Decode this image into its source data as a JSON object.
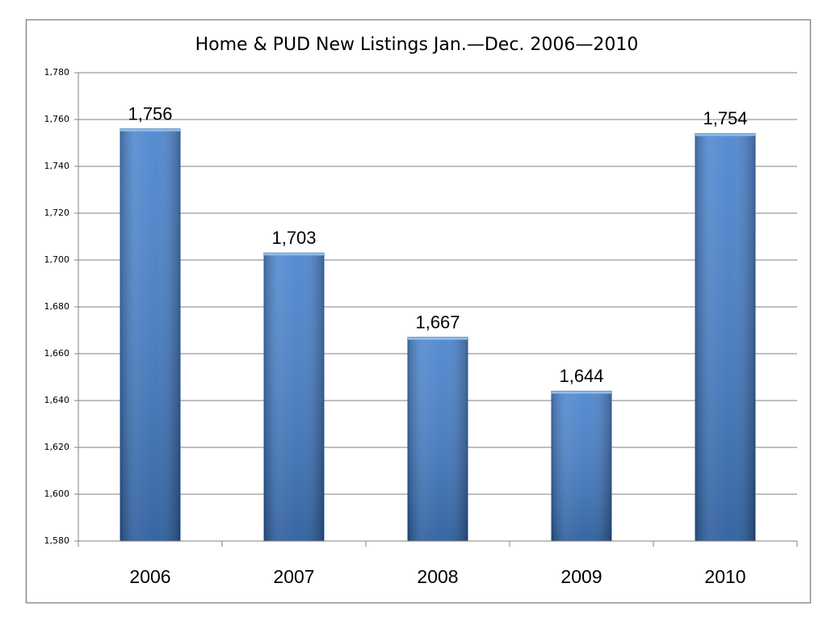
{
  "chart_data": {
    "type": "bar",
    "title": "Home & PUD New Listings Jan.—Dec. 2006—2010",
    "categories": [
      "2006",
      "2007",
      "2008",
      "2009",
      "2010"
    ],
    "values": [
      1756,
      1703,
      1667,
      1644,
      1754
    ],
    "value_labels": [
      "1,756",
      "1,703",
      "1,667",
      "1,644",
      "1,754"
    ],
    "color": "#3a78c9",
    "ylim": [
      1580,
      1780
    ],
    "yticks": [
      {
        "value": 1580,
        "label": "1,580"
      },
      {
        "value": 1600,
        "label": "1,600"
      },
      {
        "value": 1620,
        "label": "1,620"
      },
      {
        "value": 1640,
        "label": "1,640"
      },
      {
        "value": 1660,
        "label": "1,660"
      },
      {
        "value": 1680,
        "label": "1,680"
      },
      {
        "value": 1700,
        "label": "1,700"
      },
      {
        "value": 1720,
        "label": "1,720"
      },
      {
        "value": 1740,
        "label": "1,740"
      },
      {
        "value": 1760,
        "label": "1,760"
      },
      {
        "value": 1780,
        "label": "1,780"
      }
    ],
    "grid": true
  }
}
